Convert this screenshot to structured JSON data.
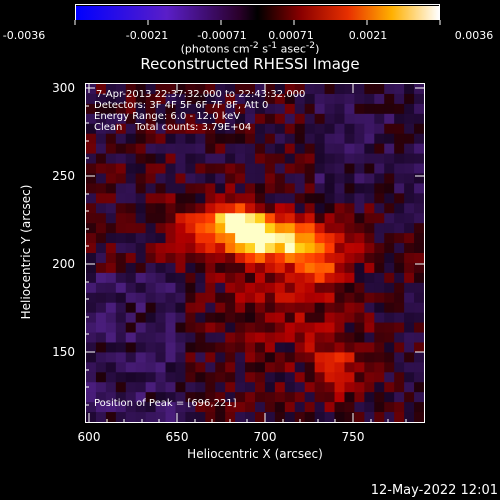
{
  "colorbar": {
    "ticks": [
      "-0.0036",
      "-0.0021",
      "-0.00071",
      "0.00071",
      "0.0021",
      "0.0036"
    ],
    "units_html": "(photons cm<sup>-2</sup> s<sup>-1</sup> asec<sup>-2</sup>)"
  },
  "title": "Reconstructed RHESSI Image",
  "info": {
    "time": "7-Apr-2013 22:37:32.000 to 22:43:32.000",
    "detectors": "Detectors: 3F 4F 5F 6F 7F 8F, Att 0",
    "energy": "Energy Range: 6.0 - 12.0 keV",
    "clean": "Clean    Total counts: 3.79E+04",
    "peak": "Position of Peak = [696,221]"
  },
  "axes": {
    "xlabel": "Heliocentric X (arcsec)",
    "ylabel": "Heliocentric Y (arcsec)",
    "xticks": [
      "600",
      "650",
      "700",
      "750"
    ],
    "yticks": [
      "300",
      "250",
      "200",
      "150"
    ],
    "xlim": [
      593,
      786
    ],
    "ylim": [
      114,
      307
    ]
  },
  "peak_position": [
    696,
    221
  ],
  "datestamp": "12-May-2022 12:01"
}
